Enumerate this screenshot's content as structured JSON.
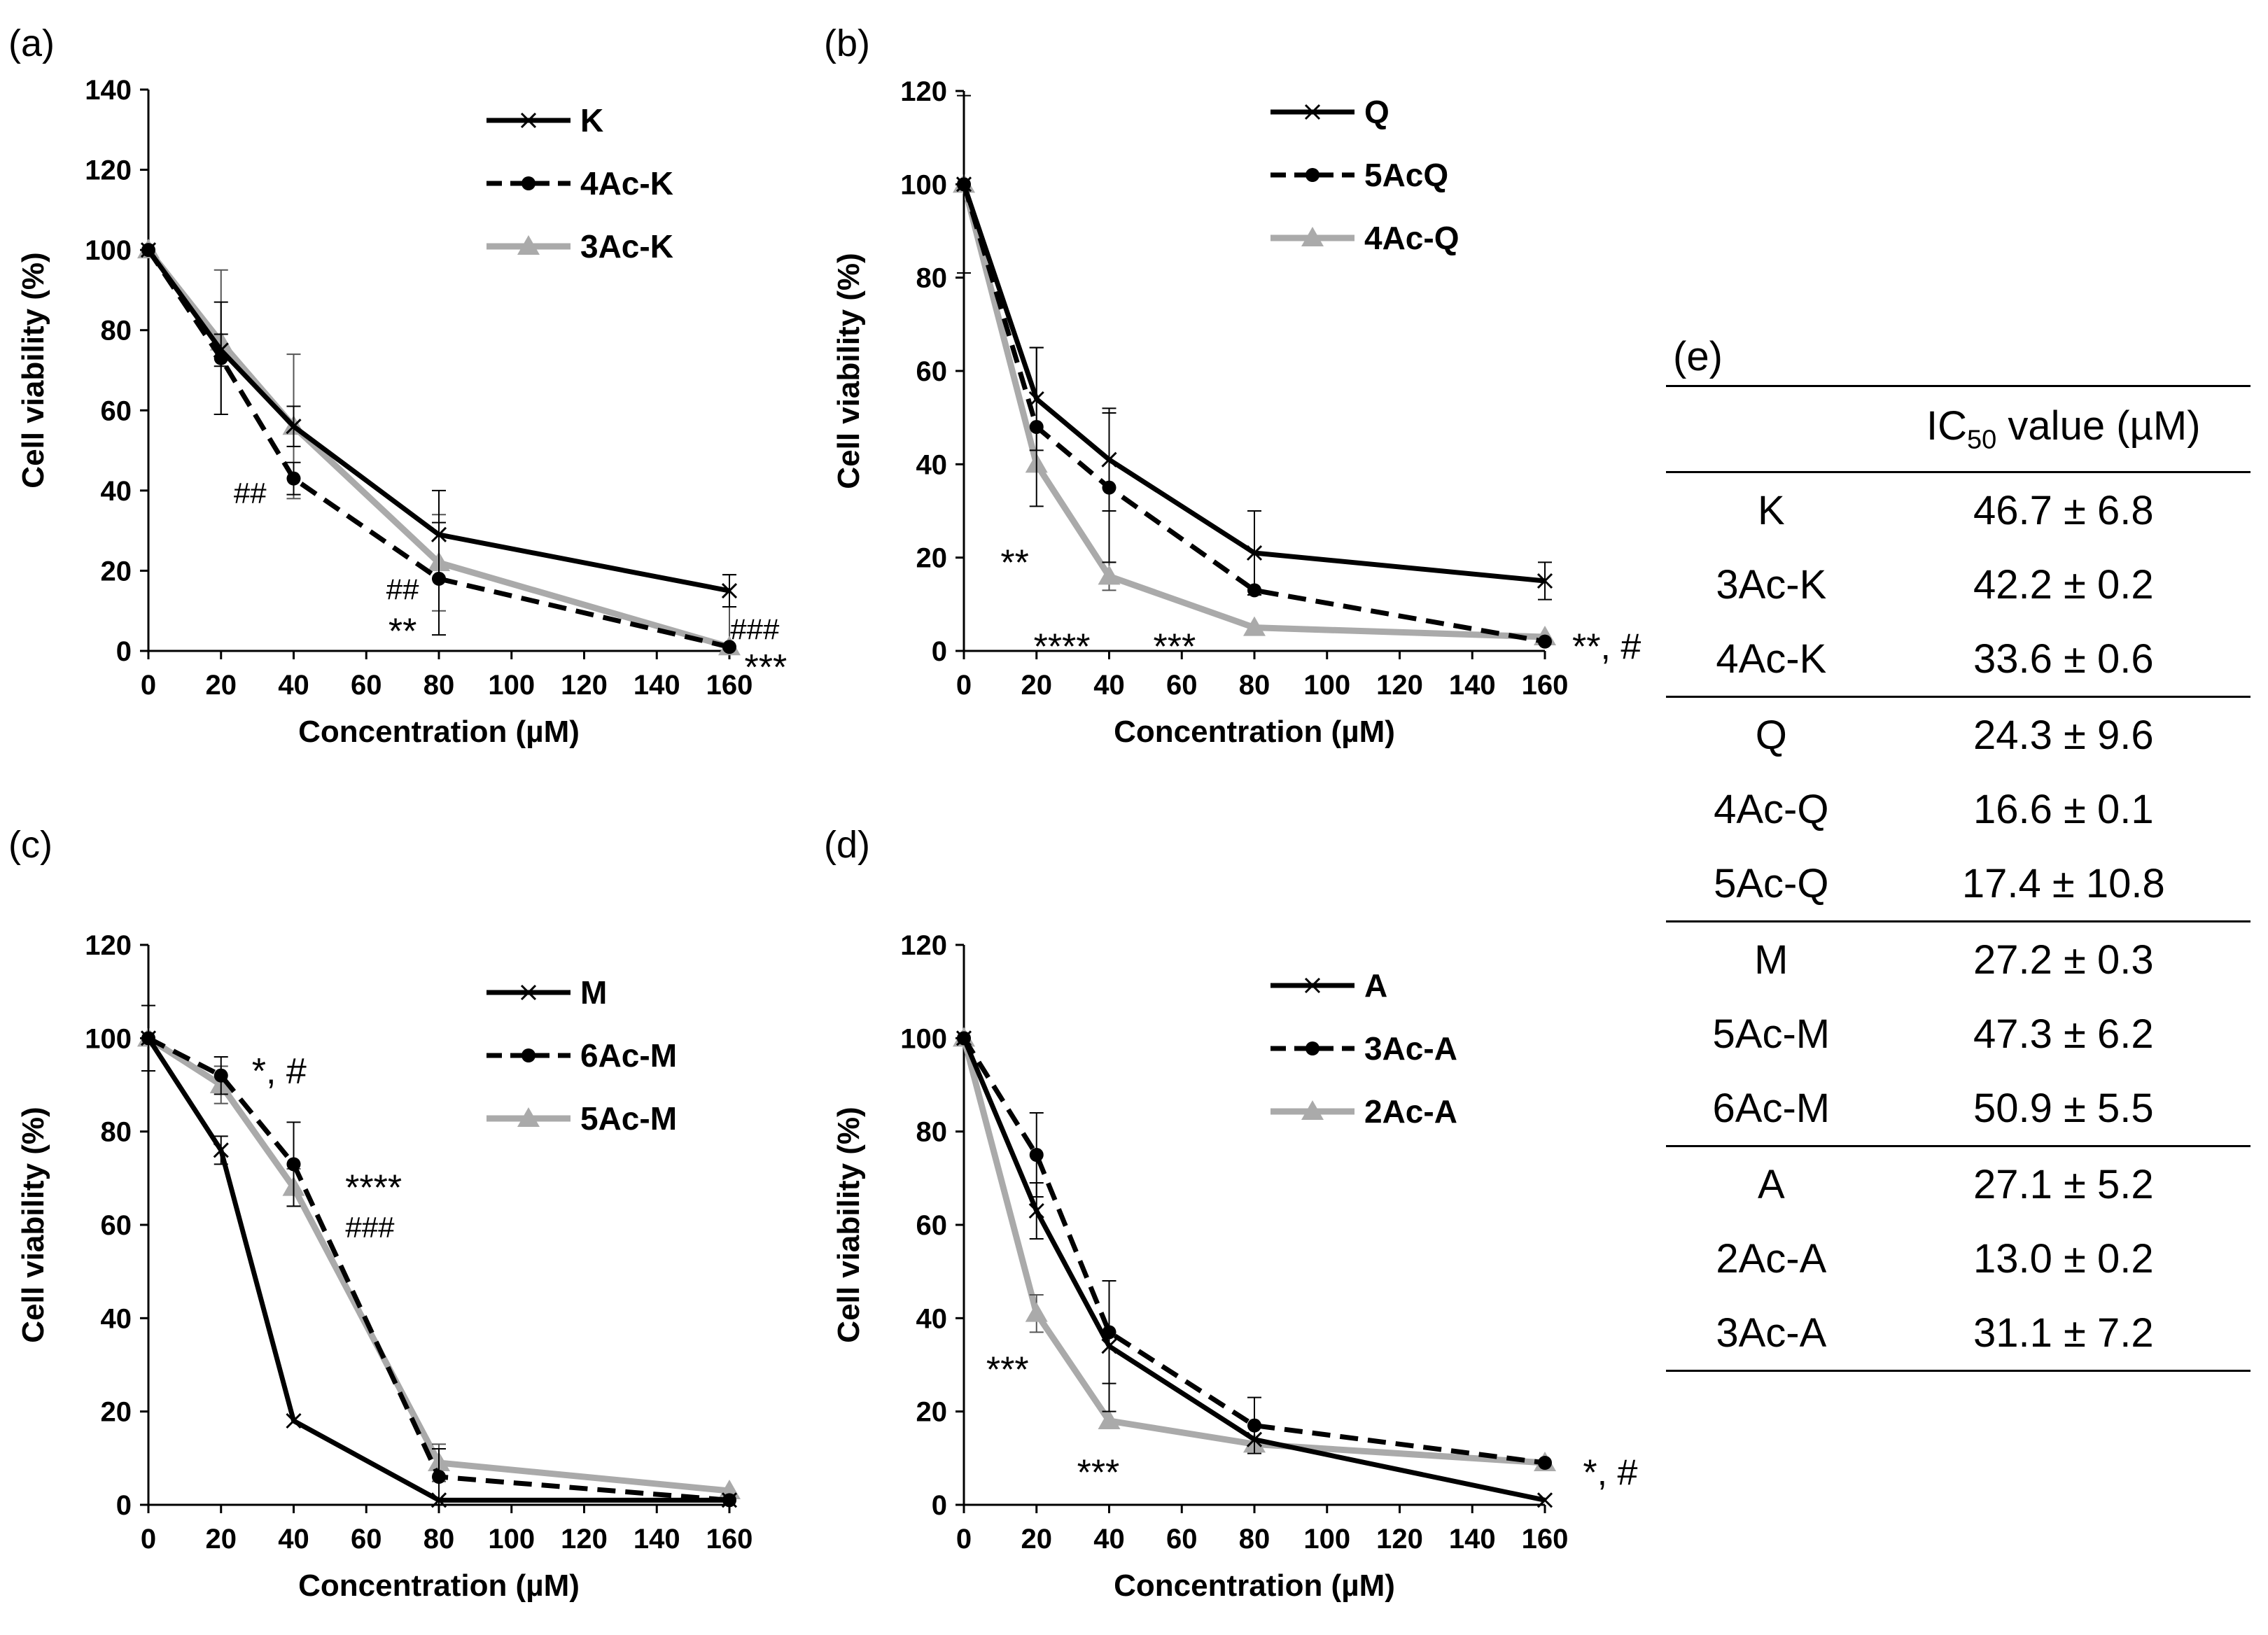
{
  "panel_labels": {
    "a": "(a)",
    "b": "(b)",
    "c": "(c)",
    "d": "(d)",
    "e": "(e)"
  },
  "chart_data": [
    {
      "type": "line",
      "xlabel": "Concentration (µM)",
      "ylabel": "Cell viability (%)",
      "xlim": [
        0,
        160
      ],
      "ylim": [
        0,
        140
      ],
      "x_ticks": [
        0,
        20,
        40,
        60,
        80,
        100,
        120,
        140,
        160
      ],
      "y_ticks": [
        0,
        20,
        40,
        60,
        80,
        100,
        120,
        140
      ],
      "x": [
        0,
        20,
        40,
        80,
        160
      ],
      "legend": "top-right",
      "series": [
        {
          "name": "K",
          "color": "#000000",
          "style": "solid",
          "marker": "x",
          "values": [
            100,
            75,
            56,
            29,
            15
          ],
          "errors": [
            0,
            4,
            5,
            11,
            4
          ]
        },
        {
          "name": "4Ac-K",
          "color": "#000000",
          "style": "dashed",
          "marker": "circle",
          "values": [
            100,
            73,
            43,
            18,
            1
          ],
          "errors": [
            0,
            14,
            4,
            14,
            0
          ]
        },
        {
          "name": "3Ac-K",
          "color": "#aaaaaa",
          "style": "solid",
          "marker": "triangle",
          "values": [
            100,
            77,
            56,
            22,
            1
          ],
          "errors": [
            0,
            18,
            18,
            12,
            18
          ]
        }
      ],
      "annotations": [
        {
          "text": "##",
          "x": 28,
          "y": 40
        },
        {
          "text": "##",
          "x": 70,
          "y": 16
        },
        {
          "text": "**",
          "x": 70,
          "y": 5
        },
        {
          "text": "###",
          "x": 167,
          "y": 6
        },
        {
          "text": "***",
          "x": 170,
          "y": -4
        }
      ]
    },
    {
      "type": "line",
      "xlabel": "Concentration (µM)",
      "ylabel": "Cell viability (%)",
      "xlim": [
        0,
        160
      ],
      "ylim": [
        0,
        120
      ],
      "x_ticks": [
        0,
        20,
        40,
        60,
        80,
        100,
        120,
        140,
        160
      ],
      "y_ticks": [
        0,
        20,
        40,
        60,
        80,
        100,
        120
      ],
      "x": [
        0,
        20,
        40,
        80,
        160
      ],
      "legend": "top-right",
      "series": [
        {
          "name": "Q",
          "color": "#000000",
          "style": "solid",
          "marker": "x",
          "values": [
            100,
            54,
            41,
            21,
            15
          ],
          "errors": [
            19,
            11,
            11,
            9,
            4
          ]
        },
        {
          "name": "5AcQ",
          "color": "#000000",
          "style": "dashed",
          "marker": "circle",
          "values": [
            100,
            48,
            35,
            13,
            2
          ],
          "errors": [
            0,
            17,
            16,
            0,
            0
          ]
        },
        {
          "name": "4Ac-Q",
          "color": "#aaaaaa",
          "style": "solid",
          "marker": "triangle",
          "values": [
            100,
            40,
            16,
            5,
            3
          ],
          "errors": [
            0,
            0,
            3,
            0,
            0
          ]
        }
      ],
      "annotations": [
        {
          "text": "**",
          "x": 14,
          "y": 19
        },
        {
          "text": "****",
          "x": 27,
          "y": 1
        },
        {
          "text": "***",
          "x": 58,
          "y": 1
        },
        {
          "text": "**, #",
          "x": 177,
          "y": 1
        }
      ]
    },
    {
      "type": "line",
      "xlabel": "Concentration (µM)",
      "ylabel": "Cell viability (%)",
      "xlim": [
        0,
        160
      ],
      "ylim": [
        0,
        120
      ],
      "x_ticks": [
        0,
        20,
        40,
        60,
        80,
        100,
        120,
        140,
        160
      ],
      "y_ticks": [
        0,
        20,
        40,
        60,
        80,
        100,
        120
      ],
      "x": [
        0,
        20,
        40,
        80,
        160
      ],
      "legend": "top-right",
      "series": [
        {
          "name": "M",
          "color": "#000000",
          "style": "solid",
          "marker": "x",
          "values": [
            100,
            76,
            18,
            1,
            1
          ],
          "errors": [
            7,
            3,
            0,
            0,
            0
          ]
        },
        {
          "name": "6Ac-M",
          "color": "#000000",
          "style": "dashed",
          "marker": "circle",
          "values": [
            100,
            92,
            73,
            6,
            1
          ],
          "errors": [
            0,
            4,
            9,
            6,
            0
          ]
        },
        {
          "name": "5Ac-M",
          "color": "#aaaaaa",
          "style": "solid",
          "marker": "triangle",
          "values": [
            100,
            90,
            68,
            9,
            3
          ],
          "errors": [
            0,
            4,
            4,
            4,
            0
          ]
        }
      ],
      "annotations": [
        {
          "text": "*, #",
          "x": 36,
          "y": 93
        },
        {
          "text": "****",
          "x": 62,
          "y": 68
        },
        {
          "text": "###",
          "x": 61,
          "y": 60
        }
      ]
    },
    {
      "type": "line",
      "xlabel": "Concentration (µM)",
      "ylabel": "Cell viability (%)",
      "xlim": [
        0,
        160
      ],
      "ylim": [
        0,
        120
      ],
      "x_ticks": [
        0,
        20,
        40,
        60,
        80,
        100,
        120,
        140,
        160
      ],
      "y_ticks": [
        0,
        20,
        40,
        60,
        80,
        100,
        120
      ],
      "x": [
        0,
        20,
        40,
        80,
        160
      ],
      "legend": "top-right",
      "series": [
        {
          "name": "A",
          "color": "#000000",
          "style": "solid",
          "marker": "x",
          "values": [
            100,
            63,
            34,
            14,
            1
          ],
          "errors": [
            0,
            6,
            14,
            0,
            0
          ]
        },
        {
          "name": "3Ac-A",
          "color": "#000000",
          "style": "dashed",
          "marker": "circle",
          "values": [
            100,
            75,
            37,
            17,
            9
          ],
          "errors": [
            0,
            9,
            11,
            6,
            0
          ]
        },
        {
          "name": "2Ac-A",
          "color": "#aaaaaa",
          "style": "solid",
          "marker": "triangle",
          "values": [
            100,
            41,
            18,
            13,
            9
          ],
          "errors": [
            0,
            4,
            0,
            0,
            0
          ]
        }
      ],
      "annotations": [
        {
          "text": "***",
          "x": 12,
          "y": 29
        },
        {
          "text": "***",
          "x": 37,
          "y": 7
        },
        {
          "text": "*, #",
          "x": 178,
          "y": 7
        }
      ]
    },
    {
      "type": "table",
      "header": {
        "compound": "",
        "value_prefix": "IC",
        "value_sub": "50",
        "value_suffix": " value (µM)"
      },
      "groups": [
        [
          [
            "K",
            "46.7 ± 6.8"
          ],
          [
            "3Ac-K",
            "42.2 ± 0.2"
          ],
          [
            "4Ac-K",
            "33.6 ± 0.6"
          ]
        ],
        [
          [
            "Q",
            "24.3 ± 9.6"
          ],
          [
            "4Ac-Q",
            "16.6 ± 0.1"
          ],
          [
            "5Ac-Q",
            "17.4 ± 10.8"
          ]
        ],
        [
          [
            "M",
            "27.2 ± 0.3"
          ],
          [
            "5Ac-M",
            "47.3 ± 6.2"
          ],
          [
            "6Ac-M",
            "50.9 ± 5.5"
          ]
        ],
        [
          [
            "A",
            "27.1 ± 5.2"
          ],
          [
            "2Ac-A",
            "13.0 ± 0.2"
          ],
          [
            "3Ac-A",
            "31.1 ± 7.2"
          ]
        ]
      ]
    }
  ]
}
